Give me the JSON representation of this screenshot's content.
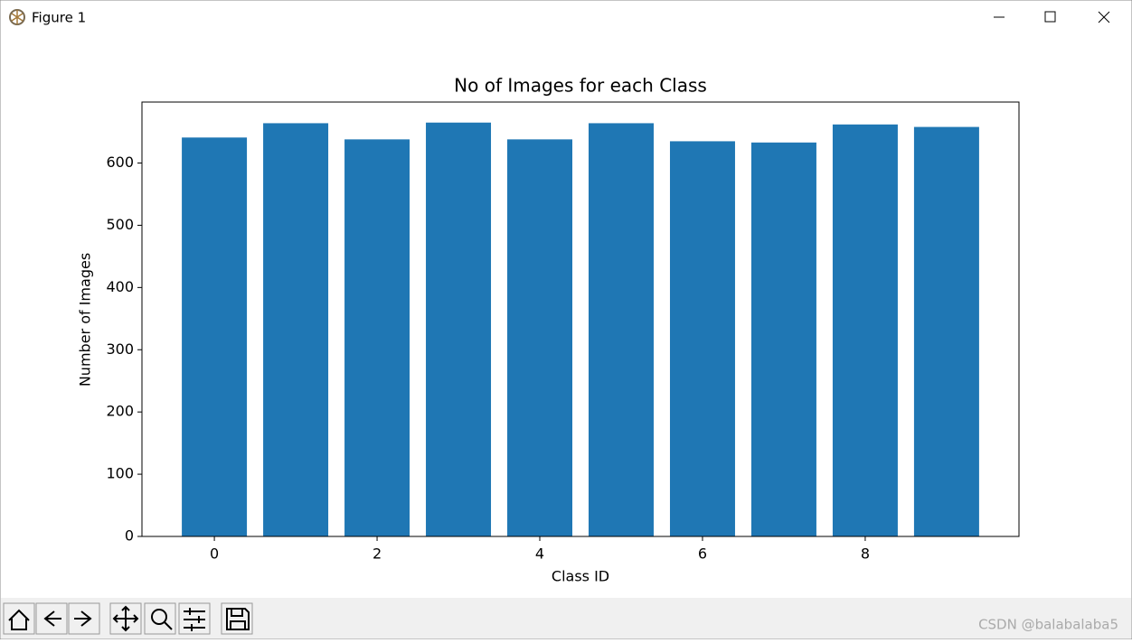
{
  "window": {
    "title": "Figure 1"
  },
  "watermark": "CSDN @balabalaba5",
  "chart_data": {
    "type": "bar",
    "title": "No of Images for each Class",
    "x_label": "Class ID",
    "y_label": "Number of Images",
    "x": [
      0,
      1,
      2,
      3,
      4,
      5,
      6,
      7,
      8,
      9
    ],
    "values": [
      641,
      664,
      638,
      665,
      638,
      664,
      635,
      633,
      662,
      658
    ],
    "color": "#1f77b4",
    "bar_width": 0.8,
    "xlim": [
      -0.89,
      9.89
    ],
    "xticks": [
      0,
      2,
      4,
      6,
      8
    ],
    "ylim": [
      0,
      698
    ],
    "yticks": [
      0,
      100,
      200,
      300,
      400,
      500,
      600
    ]
  }
}
